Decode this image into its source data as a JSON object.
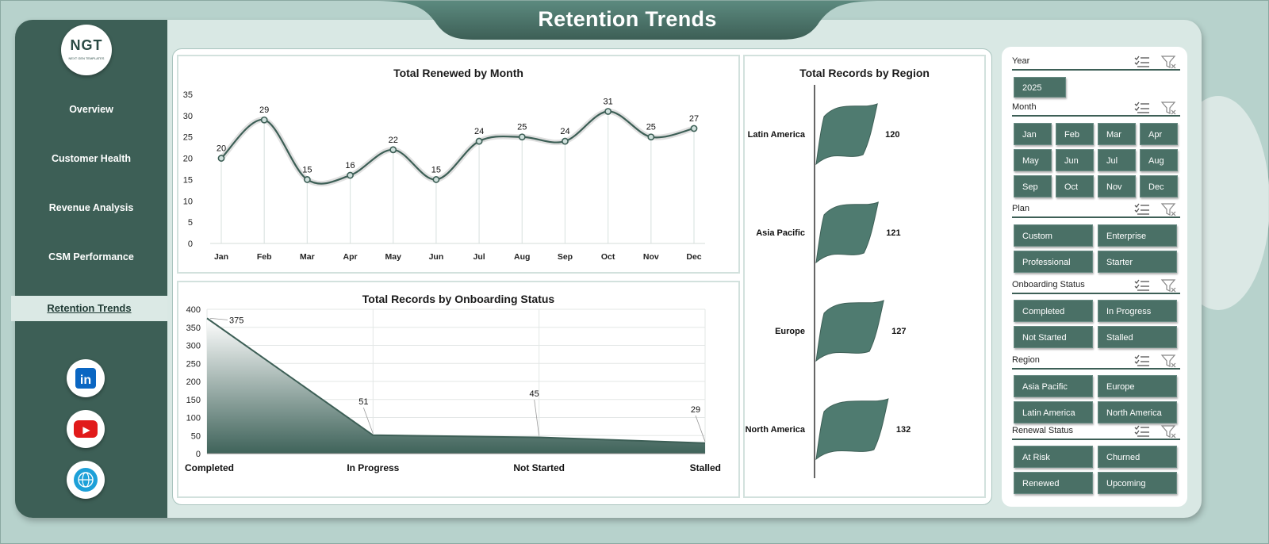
{
  "title": "Retention Trends",
  "logo": {
    "text": "NGT",
    "sub": "NEXT GEN TEMPLATES"
  },
  "nav": [
    {
      "label": "Overview",
      "active": false
    },
    {
      "label": "Customer Health",
      "active": false
    },
    {
      "label": "Revenue Analysis",
      "active": false
    },
    {
      "label": "CSM Performance",
      "active": false
    },
    {
      "label": "Retention Trends",
      "active": true
    }
  ],
  "social": [
    {
      "icon": "linkedin-icon",
      "label": "in",
      "color": "#0a66c2"
    },
    {
      "icon": "youtube-icon",
      "label": "▶",
      "color": "#e11a1a"
    },
    {
      "icon": "globe-icon",
      "label": "",
      "color": "#1da0d8"
    }
  ],
  "colors": {
    "primary": "#3d5f56",
    "chip": "#4a7066",
    "background": "#b7d2cc"
  },
  "slicers": {
    "year": {
      "title": "Year",
      "options": [
        "2025"
      ]
    },
    "month": {
      "title": "Month",
      "options": [
        "Jan",
        "Feb",
        "Mar",
        "Apr",
        "May",
        "Jun",
        "Jul",
        "Aug",
        "Sep",
        "Oct",
        "Nov",
        "Dec"
      ]
    },
    "plan": {
      "title": "Plan",
      "options": [
        "Custom",
        "Enterprise",
        "Professional",
        "Starter"
      ]
    },
    "onboarding": {
      "title": "Onboarding Status",
      "options": [
        "Completed",
        "In Progress",
        "Not Started",
        "Stalled"
      ]
    },
    "region": {
      "title": "Region",
      "options": [
        "Asia Pacific",
        "Europe",
        "Latin America",
        "North America"
      ]
    },
    "renewal": {
      "title": "Renewal Status",
      "options": [
        "At Risk",
        "Churned",
        "Renewed",
        "Upcoming"
      ]
    }
  },
  "chart_data": [
    {
      "type": "line",
      "title": "Total Renewed by Month",
      "categories": [
        "Jan",
        "Feb",
        "Mar",
        "Apr",
        "May",
        "Jun",
        "Jul",
        "Aug",
        "Sep",
        "Oct",
        "Nov",
        "Dec"
      ],
      "values": [
        20,
        29,
        15,
        16,
        22,
        15,
        24,
        25,
        24,
        31,
        25,
        27
      ],
      "ylim": [
        0,
        35
      ],
      "yticks": [
        0,
        5,
        10,
        15,
        20,
        25,
        30,
        35
      ],
      "grid": false
    },
    {
      "type": "area",
      "title": "Total Records by Onboarding Status",
      "categories": [
        "Completed",
        "In Progress",
        "Not Started",
        "Stalled"
      ],
      "values": [
        375,
        51,
        45,
        29
      ],
      "ylim": [
        0,
        400
      ],
      "yticks": [
        0,
        50,
        100,
        150,
        200,
        250,
        300,
        350,
        400
      ],
      "grid": true
    },
    {
      "type": "bar",
      "title": "Total Records by Region",
      "categories": [
        "Latin America",
        "Asia Pacific",
        "Europe",
        "North America"
      ],
      "values": [
        120,
        121,
        127,
        132
      ],
      "orientation": "horizontal"
    }
  ]
}
